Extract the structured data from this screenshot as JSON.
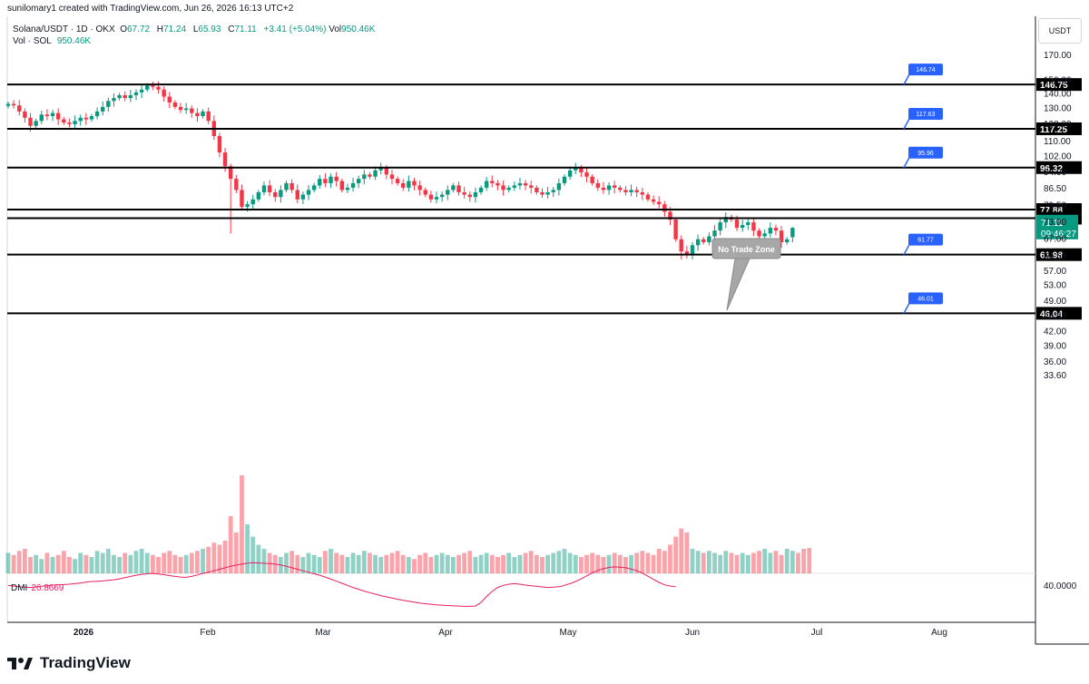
{
  "header": {
    "created_line": "sunilomary1 created with TradingView.com, Jun 26, 2026 16:13 UTC+2",
    "symbol": "Solana/USDT · 1D · OKX",
    "open_label": "O",
    "open": "67.72",
    "high_label": "H",
    "high": "71.24",
    "low_label": "L",
    "low": "65.93",
    "close_label": "C",
    "close": "71.11",
    "change": "+3.41 (+5.04%)",
    "vol_label": "Vol",
    "vol": "950.46K",
    "vol_sol_label": "Vol · SOL",
    "vol_sol": "950.46K"
  },
  "currency": "USDT",
  "indicator": {
    "name": "DMI",
    "value": "26.8669"
  },
  "brand": "TradingView",
  "colors": {
    "up": "#089981",
    "down": "#f23645",
    "dmi": "#e91e63",
    "level": "#000000",
    "tag": "#2962ff",
    "callout": "#a7a7a7"
  },
  "chart_data": {
    "type": "candlestick",
    "title": "",
    "x_ticks": [
      "2026",
      "Feb",
      "Mar",
      "Apr",
      "May",
      "Jun",
      "Jul",
      "Aug"
    ],
    "y_ticks": [
      "170.00",
      "150.00",
      "140.00",
      "130.00",
      "120.00",
      "110.00",
      "102.00",
      "94.00",
      "86.50",
      "79.50",
      "73.00",
      "67.00",
      "61.50",
      "57.00",
      "53.00",
      "49.00",
      "45.50",
      "42.00",
      "39.00",
      "36.00",
      "33.60"
    ],
    "y_scale": "log",
    "dmi_axis_label": "40.0000",
    "levels": [
      {
        "value": "146.75",
        "tag": "146.74"
      },
      {
        "value": "117.25",
        "tag": "117.63"
      },
      {
        "value": "96.32",
        "tag": "95.96"
      },
      {
        "value": "77.88",
        "tag": ""
      },
      {
        "value": "74.55",
        "tag": ""
      },
      {
        "value": "61.98",
        "tag": "61.77"
      },
      {
        "value": "46.04",
        "tag": "46.01"
      }
    ],
    "last_price": {
      "value": "71.11",
      "countdown": "09:46:27"
    },
    "annotation": "No Trade Zone",
    "closes": [
      133,
      132,
      128,
      124,
      119,
      122,
      126,
      125,
      127,
      123,
      121,
      120,
      122,
      124,
      123,
      125,
      128,
      131,
      135,
      137,
      139,
      137,
      139,
      141,
      143,
      146,
      145,
      143,
      138,
      134,
      131,
      129,
      130,
      127,
      125,
      128,
      122,
      113,
      104,
      97,
      91,
      86,
      79,
      80,
      82,
      85,
      88,
      85,
      83,
      86,
      89,
      86,
      82,
      84,
      86,
      88,
      91,
      89,
      92,
      90,
      86,
      87,
      89,
      91,
      93,
      92,
      95,
      96,
      93,
      91,
      89,
      87,
      90,
      88,
      86,
      84,
      82,
      83,
      84,
      86,
      88,
      85,
      84,
      83,
      85,
      87,
      90,
      89,
      88,
      86,
      87,
      88,
      89,
      88,
      87,
      85,
      84,
      85,
      86,
      89,
      92,
      95,
      96,
      94,
      92,
      89,
      87,
      86,
      88,
      87,
      86,
      85,
      86,
      85,
      84,
      82,
      81,
      80,
      77,
      74,
      67,
      63,
      62,
      65,
      67,
      66,
      68,
      70,
      73,
      75,
      74,
      71,
      72,
      73,
      70,
      68,
      69,
      71,
      70,
      66,
      67,
      71
    ],
    "volume_ratio": [
      0.5,
      0.45,
      0.55,
      0.6,
      0.4,
      0.45,
      0.35,
      0.5,
      0.4,
      0.45,
      0.55,
      0.4,
      0.35,
      0.5,
      0.45,
      0.4,
      0.55,
      0.5,
      0.6,
      0.45,
      0.4,
      0.5,
      0.45,
      0.55,
      0.6,
      0.5,
      0.45,
      0.4,
      0.5,
      0.55,
      0.45,
      0.4,
      0.45,
      0.5,
      0.55,
      0.6,
      0.65,
      0.75,
      0.7,
      0.8,
      1.4,
      1.0,
      2.4,
      1.2,
      0.9,
      0.7,
      0.6,
      0.5,
      0.45,
      0.4,
      0.5,
      0.55,
      0.45,
      0.4,
      0.5,
      0.45,
      0.4,
      0.55,
      0.6,
      0.5,
      0.45,
      0.4,
      0.5,
      0.45,
      0.55,
      0.5,
      0.45,
      0.4,
      0.45,
      0.5,
      0.55,
      0.45,
      0.4,
      0.35,
      0.45,
      0.5,
      0.4,
      0.45,
      0.5,
      0.45,
      0.4,
      0.45,
      0.5,
      0.55,
      0.4,
      0.45,
      0.5,
      0.45,
      0.4,
      0.45,
      0.5,
      0.4,
      0.45,
      0.5,
      0.55,
      0.45,
      0.4,
      0.45,
      0.5,
      0.55,
      0.6,
      0.5,
      0.45,
      0.4,
      0.45,
      0.5,
      0.45,
      0.4,
      0.45,
      0.5,
      0.45,
      0.4,
      0.45,
      0.5,
      0.55,
      0.5,
      0.45,
      0.6,
      0.55,
      0.7,
      0.9,
      1.1,
      1.0,
      0.6,
      0.55,
      0.5,
      0.55,
      0.5,
      0.45,
      0.55,
      0.5,
      0.45,
      0.5,
      0.45,
      0.5,
      0.55,
      0.6,
      0.5,
      0.55,
      0.45,
      0.6,
      0.55,
      0.5,
      0.6,
      0.62
    ],
    "dmi_values": [
      40.2,
      40.0,
      39.8,
      39.6,
      39.5,
      39.7,
      39.9,
      40.1,
      40.3,
      40.4,
      40.5,
      40.6,
      40.8,
      41.0,
      41.3,
      41.5,
      41.6,
      41.7,
      41.9,
      42.1,
      42.4,
      42.8,
      43.2,
      43.6,
      43.9,
      44.1,
      44.2,
      44.0,
      43.8,
      43.5,
      43.2,
      43.0,
      42.9,
      43.2,
      43.7,
      44.2,
      44.6,
      45.1,
      45.6,
      46.1,
      46.6,
      47.0,
      47.3,
      47.6,
      47.8,
      47.7,
      47.6,
      47.5,
      47.3,
      47.0,
      46.6,
      46.1,
      45.6,
      45.1,
      44.6,
      44.1,
      43.6,
      43.0,
      42.3,
      41.6,
      40.9,
      40.2,
      39.5,
      38.9,
      38.3,
      37.8,
      37.3,
      36.8,
      36.4,
      36.0,
      35.6,
      35.2,
      34.9,
      34.6,
      34.3,
      34.1,
      33.9,
      33.7,
      33.6,
      33.5,
      33.4,
      33.3,
      33.2,
      33.2,
      33.3,
      34.5,
      36.5,
      38.2,
      39.5,
      40.2,
      40.6,
      40.8,
      40.6,
      40.3,
      40.1,
      39.9,
      39.7,
      39.5,
      39.6,
      39.8,
      40.2,
      40.8,
      41.5,
      42.4,
      43.4,
      44.4,
      45.2,
      45.8,
      46.2,
      46.4,
      46.3,
      46.1,
      45.7,
      45.1,
      44.3,
      43.3,
      42.2,
      41.2,
      40.4,
      40.0,
      39.8
    ]
  }
}
